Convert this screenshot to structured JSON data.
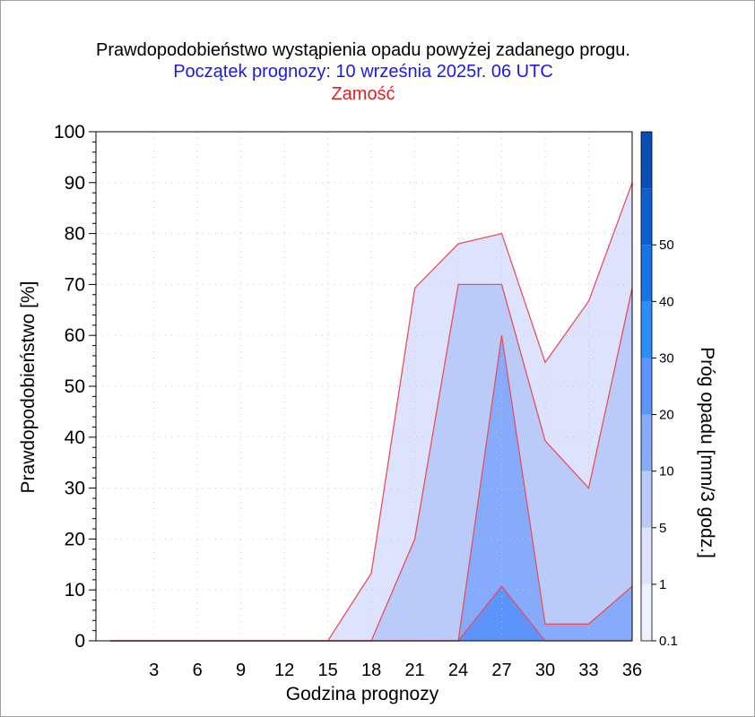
{
  "title": "Prawdopodobieństwo wystąpienia opadu powyżej zadanego progu.",
  "subtitle": "Początek prognozy: 10 września 2025r. 06 UTC",
  "location": "Zamość",
  "colors": {
    "title": "#000000",
    "subtitle": "#1a1ae6",
    "location": "#e02020",
    "contour_line": "#e8505a",
    "grid": "#c8c8c8"
  },
  "chart_data": {
    "type": "area",
    "xlabel": "Godzina prognozy",
    "ylabel": "Prawdopodobieństwo [%]",
    "xlim": [
      -1,
      36
    ],
    "ylim": [
      0,
      100
    ],
    "x": [
      0,
      3,
      6,
      9,
      12,
      15,
      18,
      21,
      24,
      27,
      30,
      33,
      36
    ],
    "x_tick_labels": [
      "3",
      "6",
      "9",
      "12",
      "15",
      "18",
      "21",
      "24",
      "27",
      "30",
      "33",
      "36"
    ],
    "x_tick_values": [
      3,
      6,
      9,
      12,
      15,
      18,
      21,
      24,
      27,
      30,
      33,
      36
    ],
    "y_tick_labels": [
      "0",
      "10",
      "20",
      "30",
      "40",
      "50",
      "60",
      "70",
      "80",
      "90",
      "100"
    ],
    "grid": true,
    "series": [
      {
        "threshold": "0.1",
        "color": "#dde3fd",
        "values": [
          0,
          0,
          0,
          0,
          0,
          0,
          13.3,
          69.3,
          78,
          80,
          54.7,
          66.7,
          90
        ]
      },
      {
        "threshold": "1",
        "color": "#bacaf9",
        "values": [
          0,
          0,
          0,
          0,
          0,
          0,
          0,
          20,
          70,
          70,
          39.3,
          30,
          69.3
        ]
      },
      {
        "threshold": "5",
        "color": "#86aafc",
        "values": [
          0,
          0,
          0,
          0,
          0,
          0,
          0,
          0,
          0,
          60,
          3.3,
          3.3,
          10.7
        ]
      },
      {
        "threshold": "10",
        "color": "#5c94fb",
        "values": [
          0,
          0,
          0,
          0,
          0,
          0,
          0,
          0,
          0,
          10.7,
          0,
          0,
          0
        ]
      }
    ],
    "legend": {
      "title": "Próg opadu [mm/3 godz.]",
      "placement": "right",
      "levels": [
        {
          "label": "0.1",
          "color": "#eef1fe"
        },
        {
          "label": "1",
          "color": "#dde3fd"
        },
        {
          "label": "5",
          "color": "#bacaf9"
        },
        {
          "label": "10",
          "color": "#86aafc"
        },
        {
          "label": "20",
          "color": "#5c94fb"
        },
        {
          "label": "30",
          "color": "#2e8ef8"
        },
        {
          "label": "40",
          "color": "#1772e6"
        },
        {
          "label": "50",
          "color": "#0d5fcf"
        },
        {
          "label": "",
          "color": "#0a4db5"
        }
      ]
    }
  }
}
